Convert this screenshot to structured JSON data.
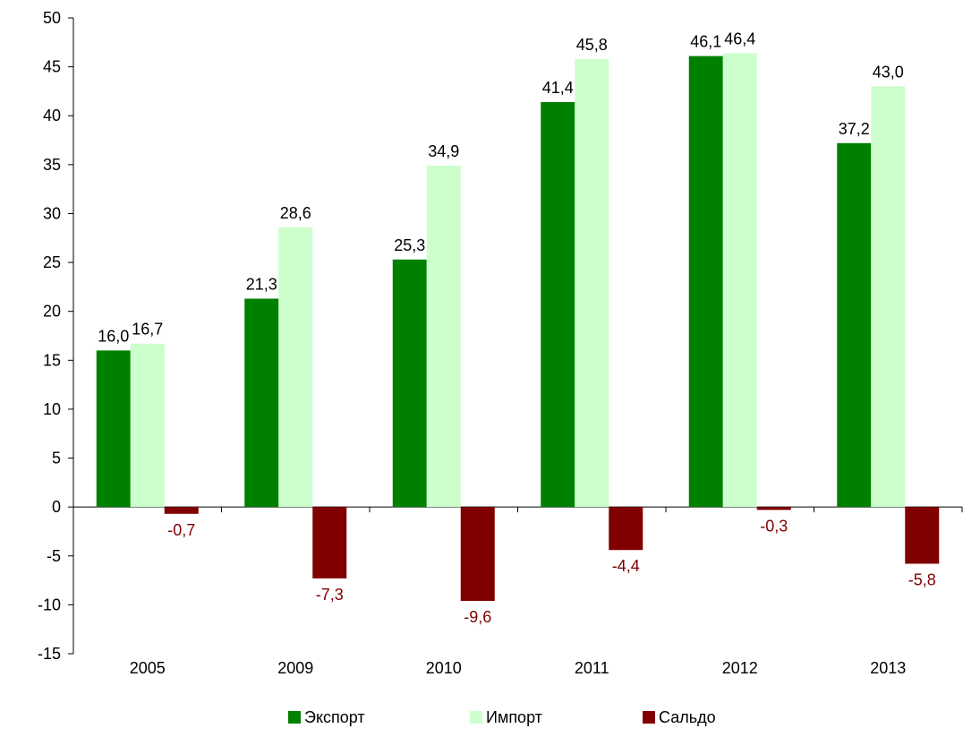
{
  "chart_data": {
    "type": "bar",
    "categories": [
      "2005",
      "2009",
      "2010",
      "2011",
      "2012",
      "2013"
    ],
    "series": [
      {
        "name": "Экспорт",
        "color": "#008000",
        "values": [
          16.0,
          21.3,
          25.3,
          41.4,
          46.1,
          37.2
        ]
      },
      {
        "name": "Импорт",
        "color": "#ccffcc",
        "values": [
          16.7,
          28.6,
          34.9,
          45.8,
          46.4,
          43.0
        ]
      },
      {
        "name": "Сальдо",
        "color": "#800000",
        "values": [
          -0.7,
          -7.3,
          -9.6,
          -4.4,
          -0.3,
          -5.8
        ]
      }
    ],
    "title": "",
    "xlabel": "",
    "ylabel": "",
    "ylim": [
      -15,
      50
    ],
    "yticks": [
      -15,
      -10,
      -5,
      0,
      5,
      10,
      15,
      20,
      25,
      30,
      35,
      40,
      45,
      50
    ],
    "decimal_separator": ",",
    "grid": false,
    "legend_position": "bottom",
    "label_colors": {
      "positive": "#000000",
      "negative": "#800000"
    }
  }
}
